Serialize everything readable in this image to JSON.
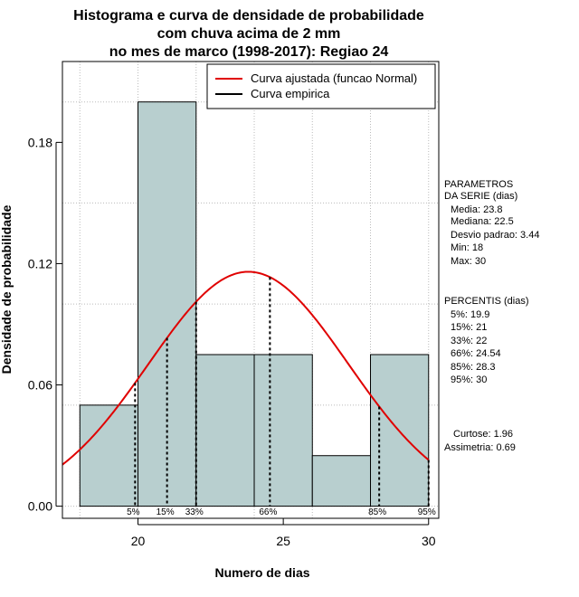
{
  "chart_data": {
    "type": "bar",
    "title": [
      "Histograma e curva de densidade de probabilidade",
      "com chuva acima de 2 mm",
      "no mes de marco (1998-2017): Regiao 24"
    ],
    "xlabel": "Numero de dias",
    "ylabel": "Densidade de probabilidade",
    "xlim": [
      17.4,
      30.35
    ],
    "ylim": [
      -0.006,
      0.22
    ],
    "x_ticks": [
      20,
      25,
      30
    ],
    "y_ticks": [
      0.0,
      0.06,
      0.12,
      0.18
    ],
    "y_tick_labels": [
      "0.00",
      "0.06",
      "0.12",
      "0.18"
    ],
    "grid": true,
    "bins": [
      {
        "start": 18,
        "end": 20,
        "density": 0.05
      },
      {
        "start": 20,
        "end": 22,
        "density": 0.2
      },
      {
        "start": 22,
        "end": 24,
        "density": 0.075
      },
      {
        "start": 24,
        "end": 26,
        "density": 0.075
      },
      {
        "start": 26,
        "end": 28,
        "density": 0.025
      },
      {
        "start": 28,
        "end": 30,
        "density": 0.075
      }
    ],
    "bar_color": "#b8cfcf",
    "series": [
      {
        "name": "Curva ajustada (funcao Normal)",
        "type": "normal_density",
        "mean": 23.8,
        "sd": 3.44,
        "color": "#e00000"
      },
      {
        "name": "Curva empirica",
        "color": "#000000"
      }
    ],
    "legend_position": "top-right",
    "percentiles": [
      {
        "label": "5%",
        "value": 19.9
      },
      {
        "label": "15%",
        "value": 21
      },
      {
        "label": "33%",
        "value": 22
      },
      {
        "label": "66%",
        "value": 24.54
      },
      {
        "label": "85%",
        "value": 28.3
      },
      {
        "label": "95%",
        "value": 30
      }
    ],
    "side_panel": {
      "parametros_title": [
        "PARAMETROS",
        "DA SERIE (dias)"
      ],
      "parametros": [
        "Media: 23.8",
        "Mediana: 22.5",
        "Desvio padrao: 3.44",
        "Min: 18",
        "Max: 30"
      ],
      "percentis_title": "PERCENTIS (dias)",
      "percentis": [
        "5%: 19.9",
        "15%: 21",
        "33%: 22",
        "66%: 24.54",
        "85%: 28.3",
        "95%: 30"
      ],
      "curtose": "Curtose: 1.96",
      "assimetria": "Assimetria: 0.69"
    }
  }
}
